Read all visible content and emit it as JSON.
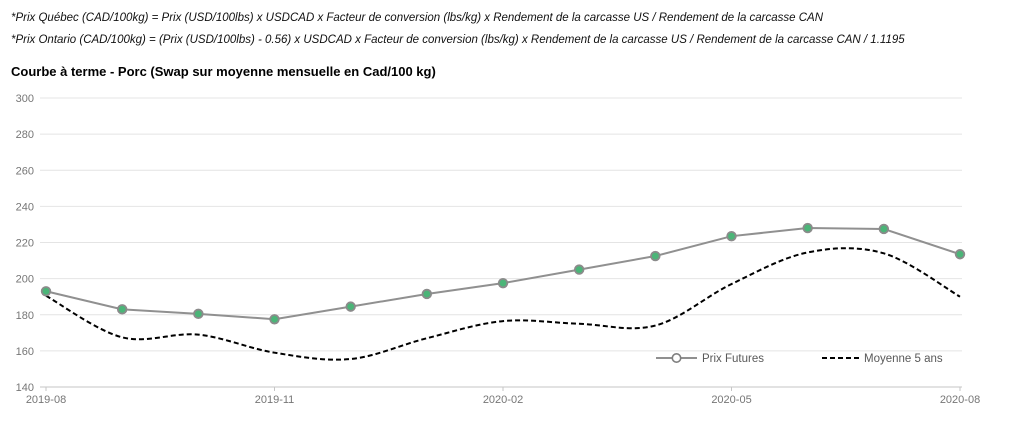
{
  "notes": {
    "quebec": "*Prix Québec (CAD/100kg) = Prix (USD/100lbs) x USDCAD x Facteur de conversion (lbs/kg) x Rendement de la carcasse US / Rendement de la carcasse CAN",
    "ontario": "*Prix Ontario (CAD/100kg) = (Prix (USD/100lbs) - 0.56) x USDCAD x Facteur de conversion (lbs/kg) x Rendement de la carcasse US / Rendement de la carcasse CAN / 1.1195"
  },
  "chart_data": {
    "type": "line",
    "title": "Courbe à terme - Porc (Swap sur moyenne mensuelle en Cad/100 kg)",
    "x": [
      "2019-08",
      "2019-09",
      "2019-10",
      "2019-11",
      "2019-12",
      "2020-01",
      "2020-02",
      "2020-03",
      "2020-04",
      "2020-05",
      "2020-06",
      "2020-07",
      "2020-08"
    ],
    "x_tick_labels": [
      "2019-08",
      "2019-11",
      "2020-02",
      "2020-05",
      "2020-08"
    ],
    "ylim": [
      140,
      300
    ],
    "ytick_step": 20,
    "grid": true,
    "legend_position": "inside-bottom-right",
    "series": [
      {
        "name": "Prix Futures",
        "style": "solid-with-markers",
        "line_color": "#909090",
        "marker_fill": "#4bb578",
        "marker_edge": "#8b8b8b",
        "values": [
          193,
          183,
          180.5,
          177.5,
          184.5,
          191.5,
          197.5,
          205,
          212.5,
          223.5,
          228,
          227.5,
          213.5
        ]
      },
      {
        "name": "Moyenne 5 ans",
        "style": "dashed-smooth",
        "line_color": "#000000",
        "values": [
          190.5,
          167.5,
          169,
          159,
          155.5,
          167,
          176.5,
          175,
          174,
          197,
          214.5,
          214,
          190
        ]
      }
    ]
  }
}
